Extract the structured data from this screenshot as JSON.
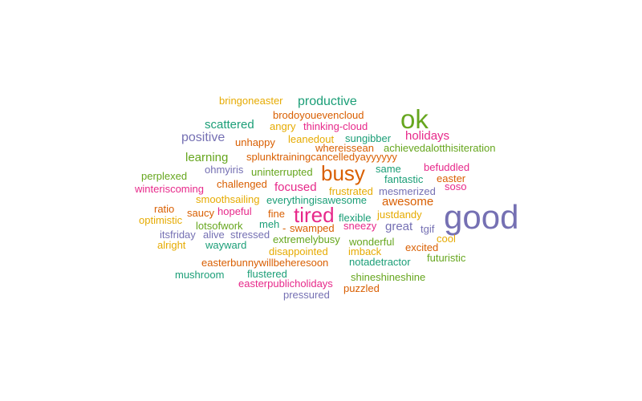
{
  "palette": {
    "green": "#1b9e77",
    "orange": "#d95f02",
    "purple": "#7570b3",
    "pink": "#e7298a",
    "lime": "#66a61e",
    "gold": "#e6ab02"
  },
  "words": [
    {
      "text": "good",
      "weight": 100,
      "color": "#7570b3"
    },
    {
      "text": "ok",
      "weight": 75,
      "color": "#66a61e"
    },
    {
      "text": "busy",
      "weight": 60,
      "color": "#d95f02"
    },
    {
      "text": "tired",
      "weight": 60,
      "color": "#e7298a"
    },
    {
      "text": "productive",
      "weight": 30,
      "color": "#1b9e77"
    },
    {
      "text": "positive",
      "weight": 30,
      "color": "#7570b3"
    },
    {
      "text": "holidays",
      "weight": 25,
      "color": "#e7298a"
    },
    {
      "text": "scattered",
      "weight": 25,
      "color": "#1b9e77"
    },
    {
      "text": "learning",
      "weight": 25,
      "color": "#66a61e"
    },
    {
      "text": "focused",
      "weight": 25,
      "color": "#e7298a"
    },
    {
      "text": "awesome",
      "weight": 25,
      "color": "#d95f02"
    },
    {
      "text": "great",
      "weight": 25,
      "color": "#7570b3"
    },
    {
      "text": "bringoneaster",
      "weight": 10,
      "color": "#e6ab02"
    },
    {
      "text": "brodoyouevencloud",
      "weight": 10,
      "color": "#d95f02"
    },
    {
      "text": "angry",
      "weight": 10,
      "color": "#e6ab02"
    },
    {
      "text": "thinking-cloud",
      "weight": 10,
      "color": "#e7298a"
    },
    {
      "text": "unhappy",
      "weight": 10,
      "color": "#d95f02"
    },
    {
      "text": "leanedout",
      "weight": 10,
      "color": "#e6ab02"
    },
    {
      "text": "sungibber",
      "weight": 10,
      "color": "#1b9e77"
    },
    {
      "text": "whereissean",
      "weight": 10,
      "color": "#d95f02"
    },
    {
      "text": "achievedalotthisiteration",
      "weight": 10,
      "color": "#66a61e"
    },
    {
      "text": "splunktrainingcancelledyayyyyyy",
      "weight": 10,
      "color": "#d95f02"
    },
    {
      "text": "befuddled",
      "weight": 10,
      "color": "#e7298a"
    },
    {
      "text": "ohmyiris",
      "weight": 10,
      "color": "#7570b3"
    },
    {
      "text": "uninterrupted",
      "weight": 10,
      "color": "#66a61e"
    },
    {
      "text": "same",
      "weight": 10,
      "color": "#1b9e77"
    },
    {
      "text": "perplexed",
      "weight": 10,
      "color": "#66a61e"
    },
    {
      "text": "fantastic",
      "weight": 10,
      "color": "#1b9e77"
    },
    {
      "text": "easter",
      "weight": 10,
      "color": "#d95f02"
    },
    {
      "text": "challenged",
      "weight": 10,
      "color": "#d95f02"
    },
    {
      "text": "soso",
      "weight": 10,
      "color": "#e7298a"
    },
    {
      "text": "winteriscoming",
      "weight": 10,
      "color": "#e7298a"
    },
    {
      "text": "frustrated",
      "weight": 10,
      "color": "#e6ab02"
    },
    {
      "text": "mesmerized",
      "weight": 10,
      "color": "#7570b3"
    },
    {
      "text": "smoothsailing",
      "weight": 10,
      "color": "#e6ab02"
    },
    {
      "text": "everythingisawesome",
      "weight": 10,
      "color": "#1b9e77"
    },
    {
      "text": "ratio",
      "weight": 10,
      "color": "#d95f02"
    },
    {
      "text": "saucy",
      "weight": 10,
      "color": "#d95f02"
    },
    {
      "text": "hopeful",
      "weight": 10,
      "color": "#e7298a"
    },
    {
      "text": "fine",
      "weight": 10,
      "color": "#d95f02"
    },
    {
      "text": "flexible",
      "weight": 10,
      "color": "#1b9e77"
    },
    {
      "text": "justdandy",
      "weight": 10,
      "color": "#e6ab02"
    },
    {
      "text": "optimistic",
      "weight": 10,
      "color": "#e6ab02"
    },
    {
      "text": "lotsofwork",
      "weight": 10,
      "color": "#66a61e"
    },
    {
      "text": "meh",
      "weight": 10,
      "color": "#1b9e77"
    },
    {
      "text": "-",
      "weight": 10,
      "color": "#d95f02"
    },
    {
      "text": "swamped",
      "weight": 10,
      "color": "#d95f02"
    },
    {
      "text": "sneezy",
      "weight": 10,
      "color": "#e7298a"
    },
    {
      "text": "tgif",
      "weight": 10,
      "color": "#7570b3"
    },
    {
      "text": "itsfriday",
      "weight": 10,
      "color": "#7570b3"
    },
    {
      "text": "alive",
      "weight": 10,
      "color": "#7570b3"
    },
    {
      "text": "stressed",
      "weight": 10,
      "color": "#7570b3"
    },
    {
      "text": "extremelybusy",
      "weight": 10,
      "color": "#66a61e"
    },
    {
      "text": "wonderful",
      "weight": 10,
      "color": "#66a61e"
    },
    {
      "text": "cool",
      "weight": 10,
      "color": "#e6ab02"
    },
    {
      "text": "alright",
      "weight": 10,
      "color": "#e6ab02"
    },
    {
      "text": "wayward",
      "weight": 10,
      "color": "#1b9e77"
    },
    {
      "text": "disappointed",
      "weight": 10,
      "color": "#e6ab02"
    },
    {
      "text": "imback",
      "weight": 10,
      "color": "#e6ab02"
    },
    {
      "text": "excited",
      "weight": 10,
      "color": "#d95f02"
    },
    {
      "text": "futuristic",
      "weight": 10,
      "color": "#66a61e"
    },
    {
      "text": "easterbunnywillbeheresoon",
      "weight": 10,
      "color": "#d95f02"
    },
    {
      "text": "notadetractor",
      "weight": 10,
      "color": "#1b9e77"
    },
    {
      "text": "mushroom",
      "weight": 10,
      "color": "#1b9e77"
    },
    {
      "text": "flustered",
      "weight": 10,
      "color": "#1b9e77"
    },
    {
      "text": "shineshineshine",
      "weight": 10,
      "color": "#66a61e"
    },
    {
      "text": "easterpublicholidays",
      "weight": 10,
      "color": "#e7298a"
    },
    {
      "text": "puzzled",
      "weight": 10,
      "color": "#d95f02"
    },
    {
      "text": "pressured",
      "weight": 10,
      "color": "#7570b3"
    }
  ]
}
